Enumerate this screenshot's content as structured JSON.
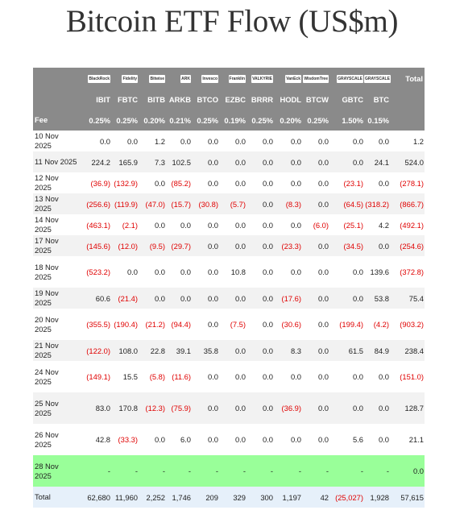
{
  "title": "Bitcoin ETF Flow (US$m)",
  "issuers": [
    "BlackRock",
    "Fidelity",
    "Bitwise",
    "ARK",
    "Invesco",
    "Franklin",
    "VALKYRIE",
    "VanEck",
    "WisdomTree",
    "GRAYSCALE",
    "GRAYSCALE"
  ],
  "total_header": "Total",
  "tickers": [
    "IBIT",
    "FBTC",
    "BITB",
    "ARKB",
    "BTCO",
    "EZBC",
    "BRRR",
    "HODL",
    "BTCW",
    "GBTC",
    "BTC"
  ],
  "fee_label": "Fee",
  "fees": [
    "0.25%",
    "0.25%",
    "0.20%",
    "0.21%",
    "0.25%",
    "0.19%",
    "0.25%",
    "0.20%",
    "0.25%",
    "1.50%",
    "0.15%"
  ],
  "rows": [
    {
      "date": "10 Nov 2025",
      "values": [
        "0.0",
        "0.0",
        "1.2",
        "0.0",
        "0.0",
        "0.0",
        "0.0",
        "0.0",
        "0.0",
        "0.0",
        "0.0"
      ],
      "total": "1.2"
    },
    {
      "date": "11 Nov 2025",
      "values": [
        "224.2",
        "165.9",
        "7.3",
        "102.5",
        "0.0",
        "0.0",
        "0.0",
        "0.0",
        "0.0",
        "0.0",
        "24.1"
      ],
      "total": "524.0"
    },
    {
      "date": "12 Nov 2025",
      "values": [
        "(36.9)",
        "(132.9)",
        "0.0",
        "(85.2)",
        "0.0",
        "0.0",
        "0.0",
        "0.0",
        "0.0",
        "(23.1)",
        "0.0"
      ],
      "total": "(278.1)"
    },
    {
      "date": "13 Nov 2025",
      "values": [
        "(256.6)",
        "(119.9)",
        "(47.0)",
        "(15.7)",
        "(30.8)",
        "(5.7)",
        "0.0",
        "(8.3)",
        "0.0",
        "(64.5)",
        "(318.2)"
      ],
      "total": "(866.7)"
    },
    {
      "date": "14 Nov 2025",
      "values": [
        "(463.1)",
        "(2.1)",
        "0.0",
        "0.0",
        "0.0",
        "0.0",
        "0.0",
        "0.0",
        "(6.0)",
        "(25.1)",
        "4.2"
      ],
      "total": "(492.1)"
    },
    {
      "date": "17 Nov 2025",
      "values": [
        "(145.6)",
        "(12.0)",
        "(9.5)",
        "(29.7)",
        "0.0",
        "0.0",
        "0.0",
        "(23.3)",
        "0.0",
        "(34.5)",
        "0.0"
      ],
      "total": "(254.6)"
    },
    {
      "date": "18 Nov 2025",
      "values": [
        "(523.2)",
        "0.0",
        "0.0",
        "0.0",
        "0.0",
        "10.8",
        "0.0",
        "0.0",
        "0.0",
        "0.0",
        "139.6"
      ],
      "total": "(372.8)"
    },
    {
      "date": "19 Nov 2025",
      "values": [
        "60.6",
        "(21.4)",
        "0.0",
        "0.0",
        "0.0",
        "0.0",
        "0.0",
        "(17.6)",
        "0.0",
        "0.0",
        "53.8"
      ],
      "total": "75.4"
    },
    {
      "date": "20 Nov 2025",
      "values": [
        "(355.5)",
        "(190.4)",
        "(21.2)",
        "(94.4)",
        "0.0",
        "(7.5)",
        "0.0",
        "(30.6)",
        "0.0",
        "(199.4)",
        "(4.2)"
      ],
      "total": "(903.2)"
    },
    {
      "date": "21 Nov 2025",
      "values": [
        "(122.0)",
        "108.0",
        "22.8",
        "39.1",
        "35.8",
        "0.0",
        "0.0",
        "8.3",
        "0.0",
        "61.5",
        "84.9"
      ],
      "total": "238.4"
    },
    {
      "date": "24 Nov 2025",
      "values": [
        "(149.1)",
        "15.5",
        "(5.8)",
        "(11.6)",
        "0.0",
        "0.0",
        "0.0",
        "0.0",
        "0.0",
        "0.0",
        "0.0"
      ],
      "total": "(151.0)"
    },
    {
      "date": "25 Nov 2025",
      "values": [
        "83.0",
        "170.8",
        "(12.3)",
        "(75.9)",
        "0.0",
        "0.0",
        "0.0",
        "(36.9)",
        "0.0",
        "0.0",
        "0.0"
      ],
      "total": "128.7"
    },
    {
      "date": "26 Nov 2025",
      "values": [
        "42.8",
        "(33.3)",
        "0.0",
        "6.0",
        "0.0",
        "0.0",
        "0.0",
        "0.0",
        "0.0",
        "5.6",
        "0.0"
      ],
      "total": "21.1"
    },
    {
      "date": "28 Nov 2025",
      "values": [
        "-",
        "-",
        "-",
        "-",
        "-",
        "-",
        "-",
        "-",
        "-",
        "-",
        "-"
      ],
      "total": "0.0",
      "highlight": true
    }
  ],
  "total_row": {
    "label": "Total",
    "values": [
      "62,680",
      "11,960",
      "2,252",
      "1,746",
      "209",
      "329",
      "300",
      "1,197",
      "42",
      "(25,027)",
      "1,928"
    ],
    "total": "57,615"
  },
  "colors": {
    "header_bg": "#8a8a8a",
    "negative": "#e00000",
    "highlight_row": "#99ff99",
    "total_row": "#e6f0fa",
    "stripe": "#f2f2f2"
  }
}
